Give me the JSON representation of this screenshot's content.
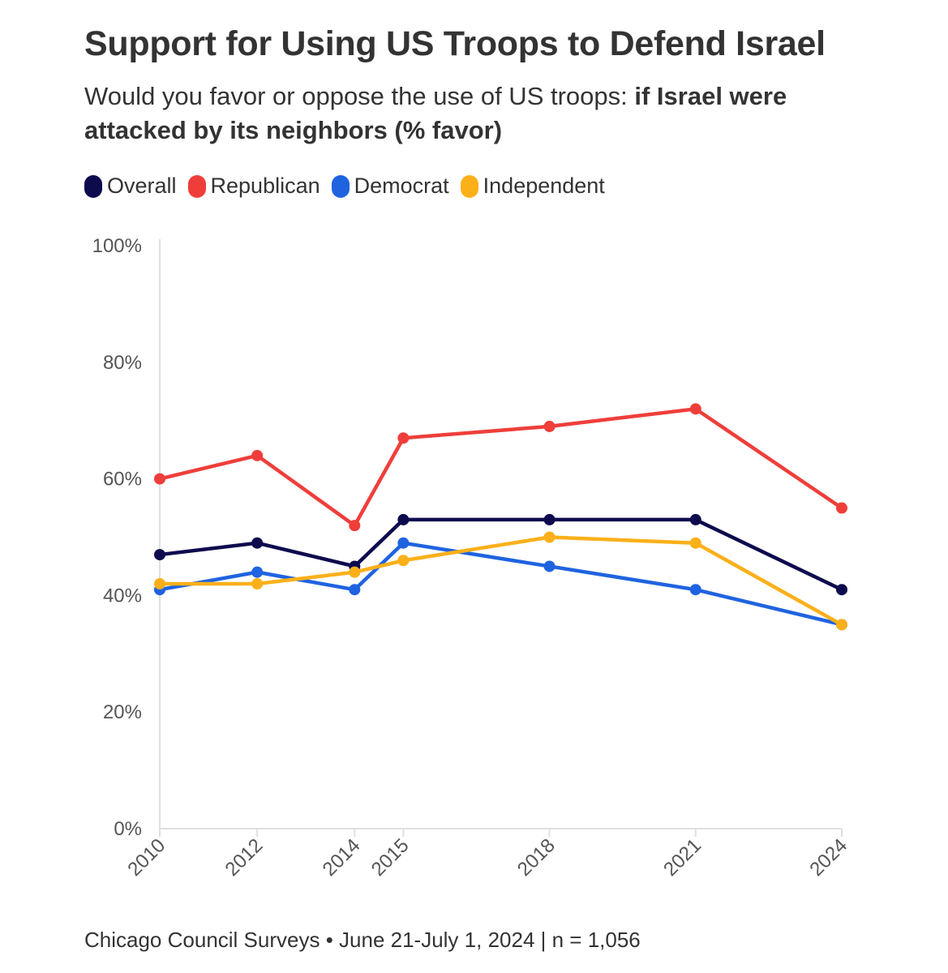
{
  "header": {
    "title": "Support for Using US Troops to Defend Israel",
    "subtitle_plain": "Would you favor or oppose the use of US troops: ",
    "subtitle_bold": "if Israel were attacked by its neighbors (% favor)"
  },
  "footer": {
    "source": "Chicago Council Surveys • June 21-July 1, 2024 | n = 1,056"
  },
  "colors": {
    "Overall": "#0d0a4e",
    "Republican": "#ef3e3a",
    "Democrat": "#1f63e0",
    "Independent": "#fbb01a",
    "grid": "#e6e6e6",
    "axis": "#e0e0e0"
  },
  "chart_data": {
    "type": "line",
    "title": "Support for Using US Troops to Defend Israel",
    "x": [
      2010,
      2012,
      2014,
      2015,
      2018,
      2021,
      2024
    ],
    "x_tick_labels": [
      "2010",
      "2012",
      "2014",
      "2015",
      "2018",
      "2021",
      "2024"
    ],
    "y_ticks": [
      0,
      20,
      40,
      60,
      80,
      100
    ],
    "y_tick_labels": [
      "0%",
      "20%",
      "40%",
      "60%",
      "80%",
      "100%"
    ],
    "ylim": [
      0,
      100
    ],
    "xlabel": "",
    "ylabel": "",
    "legend_position": "top-left",
    "series": [
      {
        "name": "Overall",
        "values": [
          47,
          49,
          45,
          53,
          53,
          53,
          41
        ]
      },
      {
        "name": "Republican",
        "values": [
          60,
          64,
          52,
          67,
          69,
          72,
          55
        ]
      },
      {
        "name": "Democrat",
        "values": [
          41,
          44,
          41,
          49,
          45,
          41,
          35
        ]
      },
      {
        "name": "Independent",
        "values": [
          42,
          42,
          44,
          46,
          50,
          49,
          35
        ]
      }
    ]
  }
}
